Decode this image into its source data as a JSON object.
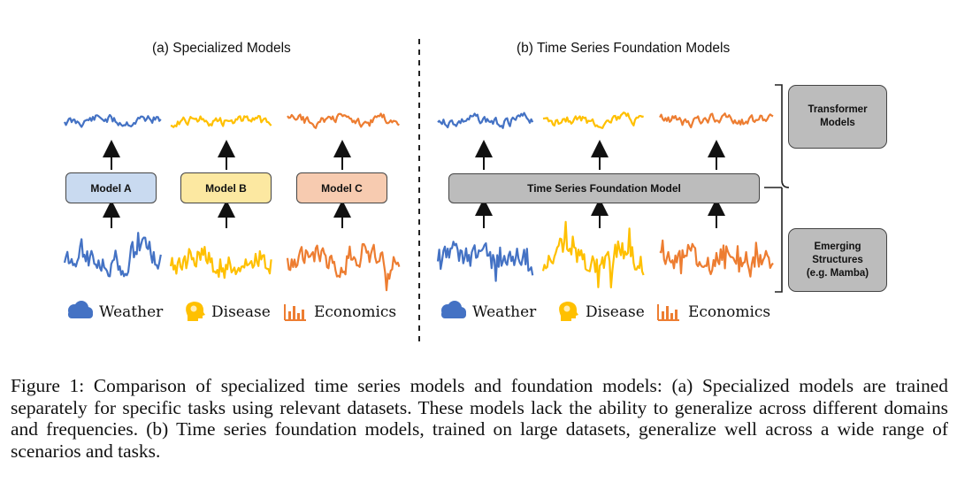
{
  "panel_a": {
    "title": "(a) Specialized Models",
    "models": [
      "Model A",
      "Model B",
      "Model C"
    ]
  },
  "panel_b": {
    "title": "(b) Time Series Foundation Models",
    "model": "Time Series Foundation Model"
  },
  "domains": [
    {
      "name": "Weather",
      "icon": "cloud-icon",
      "color": "#4472c4"
    },
    {
      "name": "Disease",
      "icon": "brain-head-icon",
      "color": "#ffc000"
    },
    {
      "name": "Economics",
      "icon": "bar-chart-icon",
      "color": "#ed7d31"
    }
  ],
  "side_boxes": {
    "transformer": [
      "Transformer",
      "Models"
    ],
    "emerging": [
      "Emerging",
      "Structures",
      "(e.g. Mamba)"
    ]
  },
  "colors": {
    "model_a": "#c9daf0",
    "model_b": "#fce8a1",
    "model_c": "#f7cbb0",
    "foundation": "#bcbcbc",
    "side_box": "#bcbcbc"
  },
  "caption": "Figure 1: Comparison of specialized time series models and foundation models: (a) Specialized models are trained separately for specific tasks using relevant datasets. These models lack the ability to generalize across different domains and frequencies. (b) Time series foundation models, trained on large datasets, generalize well across a wide range of scenarios and tasks."
}
